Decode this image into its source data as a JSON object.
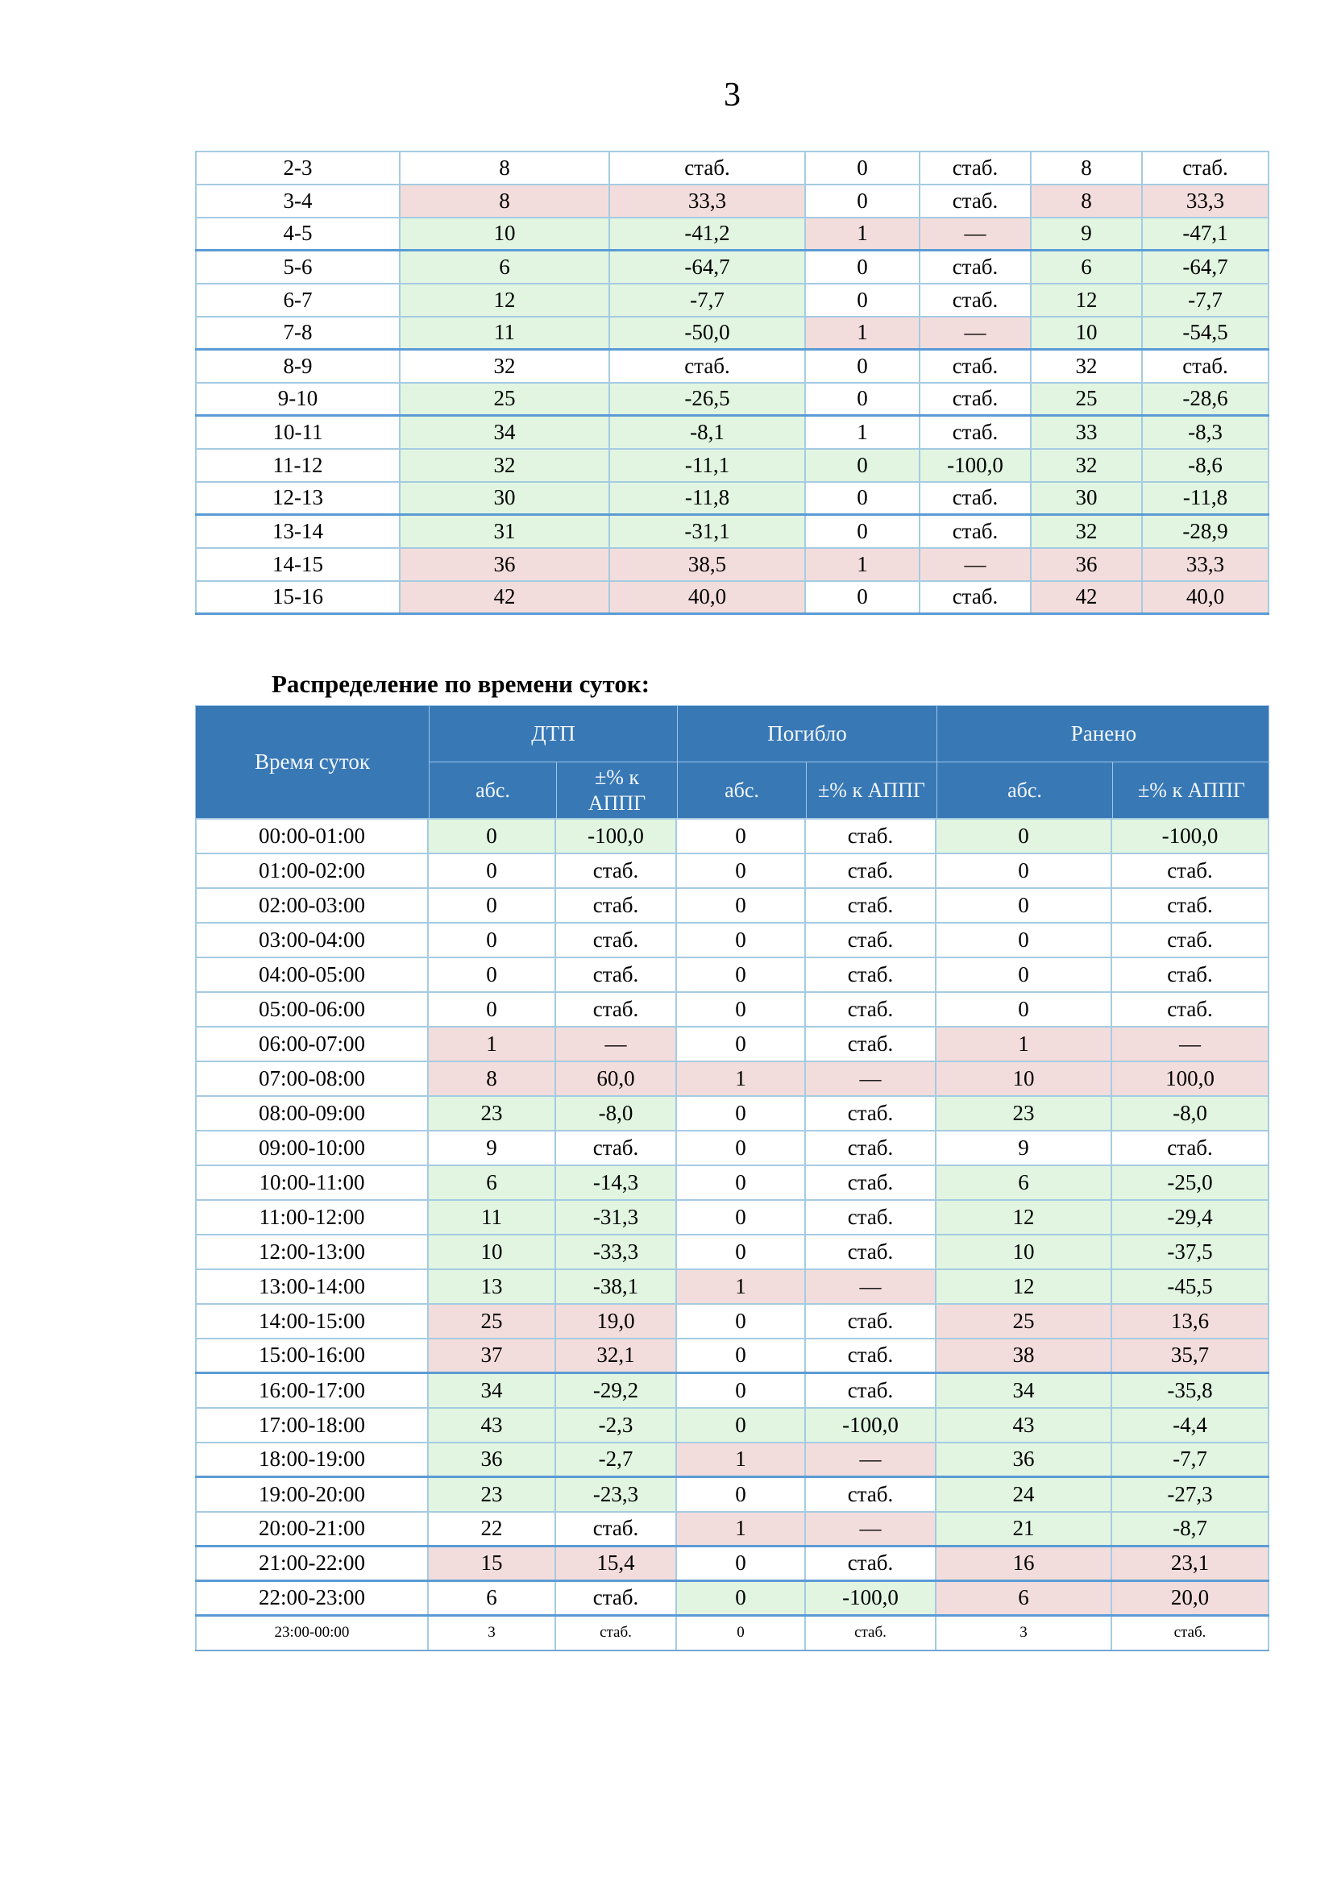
{
  "page": {
    "number": "3"
  },
  "colors": {
    "header_bg": "#3878b5",
    "increase_pink": "#f3dddc",
    "decrease_green": "#e1f5e1",
    "grid_line": "#a5cbe2",
    "grid_line_thick": "#5b9bd5"
  },
  "table1": {
    "note": "continuation table without header: interval | accidents abs | ±% | died abs | ±% | injured abs | ±%",
    "rows": [
      {
        "label": "2-3",
        "v": [
          "8",
          "стаб.",
          "0",
          "стаб.",
          "8",
          "стаб."
        ],
        "c": [
          "w",
          "w",
          "w",
          "w",
          "w",
          "w"
        ],
        "thick": false
      },
      {
        "label": "3-4",
        "v": [
          "8",
          "33,3",
          "0",
          "стаб.",
          "8",
          "33,3"
        ],
        "c": [
          "p",
          "p",
          "w",
          "w",
          "p",
          "p"
        ],
        "thick": false
      },
      {
        "label": "4-5",
        "v": [
          "10",
          "-41,2",
          "1",
          "—",
          "9",
          "-47,1"
        ],
        "c": [
          "g",
          "g",
          "p",
          "p",
          "g",
          "g"
        ],
        "thick": true
      },
      {
        "label": "5-6",
        "v": [
          "6",
          "-64,7",
          "0",
          "стаб.",
          "6",
          "-64,7"
        ],
        "c": [
          "g",
          "g",
          "w",
          "w",
          "g",
          "g"
        ],
        "thick": false
      },
      {
        "label": "6-7",
        "v": [
          "12",
          "-7,7",
          "0",
          "стаб.",
          "12",
          "-7,7"
        ],
        "c": [
          "g",
          "g",
          "w",
          "w",
          "g",
          "g"
        ],
        "thick": false
      },
      {
        "label": "7-8",
        "v": [
          "11",
          "-50,0",
          "1",
          "—",
          "10",
          "-54,5"
        ],
        "c": [
          "g",
          "g",
          "p",
          "p",
          "g",
          "g"
        ],
        "thick": true
      },
      {
        "label": "8-9",
        "v": [
          "32",
          "стаб.",
          "0",
          "стаб.",
          "32",
          "стаб."
        ],
        "c": [
          "w",
          "w",
          "w",
          "w",
          "w",
          "w"
        ],
        "thick": false
      },
      {
        "label": "9-10",
        "v": [
          "25",
          "-26,5",
          "0",
          "стаб.",
          "25",
          "-28,6"
        ],
        "c": [
          "g",
          "g",
          "w",
          "w",
          "g",
          "g"
        ],
        "thick": true
      },
      {
        "label": "10-11",
        "v": [
          "34",
          "-8,1",
          "1",
          "стаб.",
          "33",
          "-8,3"
        ],
        "c": [
          "g",
          "g",
          "w",
          "w",
          "g",
          "g"
        ],
        "thick": false
      },
      {
        "label": "11-12",
        "v": [
          "32",
          "-11,1",
          "0",
          "-100,0",
          "32",
          "-8,6"
        ],
        "c": [
          "g",
          "g",
          "g",
          "g",
          "g",
          "g"
        ],
        "thick": false
      },
      {
        "label": "12-13",
        "v": [
          "30",
          "-11,8",
          "0",
          "стаб.",
          "30",
          "-11,8"
        ],
        "c": [
          "g",
          "g",
          "w",
          "w",
          "g",
          "g"
        ],
        "thick": true
      },
      {
        "label": "13-14",
        "v": [
          "31",
          "-31,1",
          "0",
          "стаб.",
          "32",
          "-28,9"
        ],
        "c": [
          "g",
          "g",
          "w",
          "w",
          "g",
          "g"
        ],
        "thick": false
      },
      {
        "label": "14-15",
        "v": [
          "36",
          "38,5",
          "1",
          "—",
          "36",
          "33,3"
        ],
        "c": [
          "p",
          "p",
          "p",
          "p",
          "p",
          "p"
        ],
        "thick": false
      },
      {
        "label": "15-16",
        "v": [
          "42",
          "40,0",
          "0",
          "стаб.",
          "42",
          "40,0"
        ],
        "c": [
          "p",
          "p",
          "w",
          "w",
          "p",
          "p"
        ],
        "thick": false
      }
    ]
  },
  "section2": {
    "title": "Распределение по времени суток:",
    "table": {
      "header": {
        "time": "Время суток",
        "groups": [
          "ДТП",
          "Погибло",
          "Ранено"
        ],
        "sub": [
          "абс.",
          "±% к\nАППГ",
          "абс.",
          "±% к АППГ",
          "абс.",
          "±% к АППГ"
        ]
      },
      "rows": [
        {
          "label": "00:00-01:00",
          "v": [
            "0",
            "-100,0",
            "0",
            "стаб.",
            "0",
            "-100,0"
          ],
          "c": [
            "g",
            "g",
            "w",
            "w",
            "g",
            "g"
          ],
          "thick": false,
          "small": false
        },
        {
          "label": "01:00-02:00",
          "v": [
            "0",
            "стаб.",
            "0",
            "стаб.",
            "0",
            "стаб."
          ],
          "c": [
            "w",
            "w",
            "w",
            "w",
            "w",
            "w"
          ],
          "thick": false,
          "small": false
        },
        {
          "label": "02:00-03:00",
          "v": [
            "0",
            "стаб.",
            "0",
            "стаб.",
            "0",
            "стаб."
          ],
          "c": [
            "w",
            "w",
            "w",
            "w",
            "w",
            "w"
          ],
          "thick": false,
          "small": false
        },
        {
          "label": "03:00-04:00",
          "v": [
            "0",
            "стаб.",
            "0",
            "стаб.",
            "0",
            "стаб."
          ],
          "c": [
            "w",
            "w",
            "w",
            "w",
            "w",
            "w"
          ],
          "thick": false,
          "small": false
        },
        {
          "label": "04:00-05:00",
          "v": [
            "0",
            "стаб.",
            "0",
            "стаб.",
            "0",
            "стаб."
          ],
          "c": [
            "w",
            "w",
            "w",
            "w",
            "w",
            "w"
          ],
          "thick": false,
          "small": false
        },
        {
          "label": "05:00-06:00",
          "v": [
            "0",
            "стаб.",
            "0",
            "стаб.",
            "0",
            "стаб."
          ],
          "c": [
            "w",
            "w",
            "w",
            "w",
            "w",
            "w"
          ],
          "thick": false,
          "small": false
        },
        {
          "label": "06:00-07:00",
          "v": [
            "1",
            "—",
            "0",
            "стаб.",
            "1",
            "—"
          ],
          "c": [
            "p",
            "p",
            "w",
            "w",
            "p",
            "p"
          ],
          "thick": false,
          "small": false
        },
        {
          "label": "07:00-08:00",
          "v": [
            "8",
            "60,0",
            "1",
            "—",
            "10",
            "100,0"
          ],
          "c": [
            "p",
            "p",
            "p",
            "p",
            "p",
            "p"
          ],
          "thick": false,
          "small": false
        },
        {
          "label": "08:00-09:00",
          "v": [
            "23",
            "-8,0",
            "0",
            "стаб.",
            "23",
            "-8,0"
          ],
          "c": [
            "g",
            "g",
            "w",
            "w",
            "g",
            "g"
          ],
          "thick": false,
          "small": false
        },
        {
          "label": "09:00-10:00",
          "v": [
            "9",
            "стаб.",
            "0",
            "стаб.",
            "9",
            "стаб."
          ],
          "c": [
            "w",
            "w",
            "w",
            "w",
            "w",
            "w"
          ],
          "thick": false,
          "small": false
        },
        {
          "label": "10:00-11:00",
          "v": [
            "6",
            "-14,3",
            "0",
            "стаб.",
            "6",
            "-25,0"
          ],
          "c": [
            "g",
            "g",
            "w",
            "w",
            "g",
            "g"
          ],
          "thick": false,
          "small": false
        },
        {
          "label": "11:00-12:00",
          "v": [
            "11",
            "-31,3",
            "0",
            "стаб.",
            "12",
            "-29,4"
          ],
          "c": [
            "g",
            "g",
            "w",
            "w",
            "g",
            "g"
          ],
          "thick": false,
          "small": false
        },
        {
          "label": "12:00-13:00",
          "v": [
            "10",
            "-33,3",
            "0",
            "стаб.",
            "10",
            "-37,5"
          ],
          "c": [
            "g",
            "g",
            "w",
            "w",
            "g",
            "g"
          ],
          "thick": false,
          "small": false
        },
        {
          "label": "13:00-14:00",
          "v": [
            "13",
            "-38,1",
            "1",
            "—",
            "12",
            "-45,5"
          ],
          "c": [
            "g",
            "g",
            "p",
            "p",
            "g",
            "g"
          ],
          "thick": false,
          "small": false
        },
        {
          "label": "14:00-15:00",
          "v": [
            "25",
            "19,0",
            "0",
            "стаб.",
            "25",
            "13,6"
          ],
          "c": [
            "p",
            "p",
            "w",
            "w",
            "p",
            "p"
          ],
          "thick": false,
          "small": false
        },
        {
          "label": "15:00-16:00",
          "v": [
            "37",
            "32,1",
            "0",
            "стаб.",
            "38",
            "35,7"
          ],
          "c": [
            "p",
            "p",
            "w",
            "w",
            "p",
            "p"
          ],
          "thick": true,
          "small": false
        },
        {
          "label": "16:00-17:00",
          "v": [
            "34",
            "-29,2",
            "0",
            "стаб.",
            "34",
            "-35,8"
          ],
          "c": [
            "g",
            "g",
            "w",
            "w",
            "g",
            "g"
          ],
          "thick": false,
          "small": false
        },
        {
          "label": "17:00-18:00",
          "v": [
            "43",
            "-2,3",
            "0",
            "-100,0",
            "43",
            "-4,4"
          ],
          "c": [
            "g",
            "g",
            "g",
            "g",
            "g",
            "g"
          ],
          "thick": false,
          "small": false
        },
        {
          "label": "18:00-19:00",
          "v": [
            "36",
            "-2,7",
            "1",
            "—",
            "36",
            "-7,7"
          ],
          "c": [
            "g",
            "g",
            "p",
            "p",
            "g",
            "g"
          ],
          "thick": true,
          "small": false
        },
        {
          "label": "19:00-20:00",
          "v": [
            "23",
            "-23,3",
            "0",
            "стаб.",
            "24",
            "-27,3"
          ],
          "c": [
            "g",
            "g",
            "w",
            "w",
            "g",
            "g"
          ],
          "thick": false,
          "small": false
        },
        {
          "label": "20:00-21:00",
          "v": [
            "22",
            "стаб.",
            "1",
            "—",
            "21",
            "-8,7"
          ],
          "c": [
            "w",
            "w",
            "p",
            "p",
            "g",
            "g"
          ],
          "thick": true,
          "small": false
        },
        {
          "label": "21:00-22:00",
          "v": [
            "15",
            "15,4",
            "0",
            "стаб.",
            "16",
            "23,1"
          ],
          "c": [
            "p",
            "p",
            "w",
            "w",
            "p",
            "p"
          ],
          "thick": true,
          "small": false
        },
        {
          "label": "22:00-23:00",
          "v": [
            "6",
            "стаб.",
            "0",
            "-100,0",
            "6",
            "20,0"
          ],
          "c": [
            "w",
            "w",
            "g",
            "g",
            "p",
            "p"
          ],
          "thick": true,
          "small": false
        },
        {
          "label": "23:00-00:00",
          "v": [
            "3",
            "стаб.",
            "0",
            "стаб.",
            "3",
            "стаб."
          ],
          "c": [
            "w",
            "w",
            "w",
            "w",
            "w",
            "w"
          ],
          "thick": false,
          "small": true
        }
      ]
    }
  }
}
